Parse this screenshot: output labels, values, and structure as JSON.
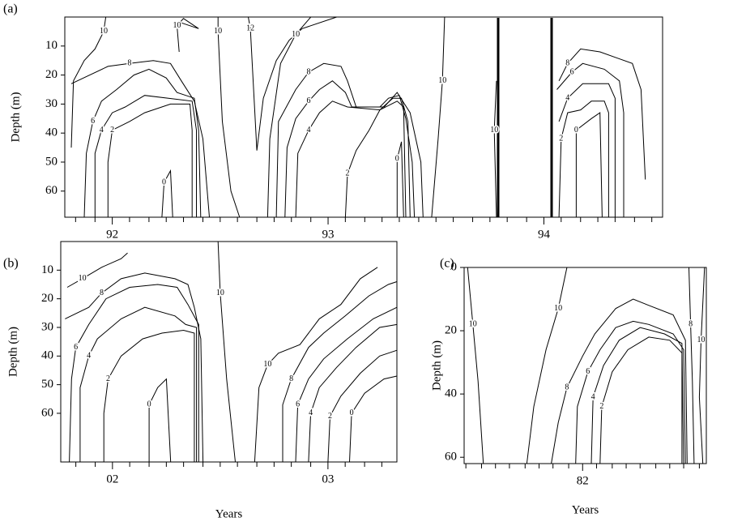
{
  "chart_data": [
    {
      "type": "contour",
      "title": "(a)",
      "ylabel": "Depth (m)",
      "line_color": "#000000",
      "xlim": [
        91.78,
        94.55
      ],
      "ylim": [
        69,
        0
      ],
      "xticks": [
        92,
        93,
        94
      ],
      "xminor": [
        91.83,
        91.92,
        92.08,
        92.17,
        92.25,
        92.33,
        92.42,
        92.5,
        92.58,
        92.67,
        92.75,
        92.83,
        92.92,
        93.08,
        93.17,
        93.25,
        93.33,
        93.42,
        93.5,
        93.58,
        93.67,
        93.75,
        93.83,
        93.92,
        94.08,
        94.17,
        94.25,
        94.33,
        94.42,
        94.5
      ],
      "yticks": [
        10,
        20,
        30,
        40,
        50,
        60
      ],
      "contours": [
        {
          "level": 10,
          "x": [
            91.97,
            91.96,
            91.92,
            91.87,
            91.82,
            91.81
          ],
          "y": [
            0,
            5,
            11,
            15,
            22,
            45
          ]
        },
        {
          "level": 8,
          "x": [
            91.81,
            91.98,
            92.08,
            92.19,
            92.27,
            92.32,
            92.38,
            92.42,
            92.45
          ],
          "y": [
            23,
            17,
            16,
            15,
            16,
            22,
            29,
            42,
            69
          ]
        },
        {
          "level": 6,
          "x": [
            91.87,
            91.88,
            91.91,
            91.95,
            92.02,
            92.1,
            92.17,
            92.25,
            92.3,
            92.38,
            92.4,
            92.41
          ],
          "y": [
            69,
            47,
            36,
            29,
            25,
            20,
            18,
            21,
            26,
            28,
            39,
            69
          ]
        },
        {
          "level": 4,
          "x": [
            91.92,
            91.92,
            91.95,
            92.0,
            92.06,
            92.15,
            92.37,
            92.39,
            92.39
          ],
          "y": [
            69,
            47,
            39,
            33,
            31,
            27,
            29,
            39,
            69
          ]
        },
        {
          "level": 2,
          "x": [
            91.98,
            91.98,
            92.0,
            92.08,
            92.15,
            92.27,
            92.36,
            92.37,
            92.37
          ],
          "y": [
            69,
            50,
            39,
            36,
            33,
            30,
            30,
            39,
            69
          ]
        },
        {
          "level": 0,
          "x": [
            92.23,
            92.24,
            92.27,
            92.28
          ],
          "y": [
            69,
            57,
            53,
            69
          ]
        },
        {
          "level": 10,
          "x": [
            92.31,
            92.3,
            92.33,
            92.4,
            92.32
          ],
          "y": [
            12,
            3,
            0.5,
            4,
            2
          ]
        },
        {
          "level": 10,
          "x": [
            92.49,
            92.49,
            92.51,
            92.55,
            92.59
          ],
          "y": [
            0,
            5,
            36,
            60,
            69
          ]
        },
        {
          "level": 12,
          "x": [
            92.63,
            92.64,
            92.67,
            92.7,
            92.76,
            92.82,
            92.88,
            93.04
          ],
          "y": [
            0,
            4,
            46,
            28,
            15,
            8,
            4,
            0
          ]
        },
        {
          "level": 10,
          "x": [
            92.92,
            92.85,
            92.78,
            92.73,
            92.72
          ],
          "y": [
            0,
            6,
            16,
            42,
            69
          ]
        },
        {
          "level": 8,
          "x": [
            92.76,
            92.77,
            92.85,
            92.91,
            92.98,
            93.06,
            93.09,
            93.13,
            93.26,
            93.32,
            93.38,
            93.43,
            93.44
          ],
          "y": [
            69,
            36,
            25,
            19,
            16,
            17,
            22,
            31,
            31,
            26,
            33,
            50,
            69
          ]
        },
        {
          "level": 6,
          "x": [
            92.8,
            92.81,
            92.85,
            92.91,
            92.96,
            93.02,
            93.08,
            93.11,
            93.24,
            93.28,
            93.33,
            93.36,
            93.39,
            93.4
          ],
          "y": [
            69,
            45,
            35,
            29,
            25,
            22,
            26,
            31,
            31,
            28,
            27,
            35,
            50,
            69
          ]
        },
        {
          "level": 4,
          "x": [
            92.85,
            92.86,
            92.91,
            92.96,
            93.02,
            93.09,
            93.24,
            93.3,
            93.34,
            93.37,
            93.38
          ],
          "y": [
            69,
            47,
            39,
            33,
            29,
            31,
            32,
            28,
            28,
            36,
            69
          ]
        },
        {
          "level": 2,
          "x": [
            93.08,
            93.09,
            93.13,
            93.19,
            93.24,
            93.32,
            93.35,
            93.36
          ],
          "y": [
            69,
            54,
            46,
            39,
            32,
            29,
            31,
            69
          ]
        },
        {
          "level": 0,
          "x": [
            93.32,
            93.32,
            93.34,
            93.35
          ],
          "y": [
            69,
            49,
            43,
            69
          ]
        },
        {
          "level": 10,
          "x": [
            93.54,
            93.53,
            93.51,
            93.48
          ],
          "y": [
            0,
            22,
            42,
            69
          ]
        },
        {
          "level": 10,
          "x": [
            93.78,
            93.77,
            93.78
          ],
          "y": [
            22,
            39,
            69
          ]
        },
        {
          "level": 8,
          "x": [
            94.07,
            94.11,
            94.17,
            94.26,
            94.41,
            94.45,
            94.47
          ],
          "y": [
            22,
            16,
            11,
            12,
            16,
            25,
            56
          ]
        },
        {
          "level": 6,
          "x": [
            94.06,
            94.13,
            94.18,
            94.28,
            94.35,
            94.37,
            94.37
          ],
          "y": [
            25,
            19,
            16,
            18,
            22,
            33,
            69
          ]
        },
        {
          "level": 4,
          "x": [
            94.07,
            94.11,
            94.18,
            94.3,
            94.33,
            94.33
          ],
          "y": [
            36,
            28,
            23,
            23,
            28,
            69
          ]
        },
        {
          "level": 2,
          "x": [
            94.07,
            94.08,
            94.11,
            94.17,
            94.22,
            94.28,
            94.3,
            94.3
          ],
          "y": [
            69,
            42,
            33,
            32,
            29,
            29,
            33,
            69
          ]
        },
        {
          "level": 0,
          "x": [
            94.15,
            94.15,
            94.22,
            94.26,
            94.27
          ],
          "y": [
            69,
            39,
            35,
            33,
            69
          ]
        }
      ]
    },
    {
      "type": "contour",
      "title": "(b)",
      "ylabel": "Depth (m)",
      "xlabel": "Years",
      "line_color": "#000000",
      "xlim": [
        1.76,
        3.32
      ],
      "ylim": [
        77,
        0
      ],
      "xticks": [
        {
          "value": 2,
          "label": "02"
        },
        {
          "value": 3,
          "label": "03"
        }
      ],
      "xminor": [
        1.83,
        1.92,
        2.08,
        2.17,
        2.25,
        2.33,
        2.42,
        2.5,
        2.58,
        2.67,
        2.75,
        2.83,
        2.92,
        3.08,
        3.17,
        3.25
      ],
      "yticks": [
        10,
        20,
        30,
        40,
        50,
        60
      ],
      "contours": [
        {
          "level": 10,
          "x": [
            1.79,
            1.86,
            1.95,
            2.04,
            2.07
          ],
          "y": [
            16,
            13,
            9,
            6,
            4
          ]
        },
        {
          "level": 8,
          "x": [
            1.78,
            1.89,
            1.95,
            2.04,
            2.15,
            2.29,
            2.35,
            2.38,
            2.41,
            2.42
          ],
          "y": [
            27,
            23,
            18,
            13,
            11,
            13,
            15,
            23,
            34,
            77
          ]
        },
        {
          "level": 6,
          "x": [
            1.8,
            1.81,
            1.83,
            1.89,
            1.97,
            2.08,
            2.21,
            2.3,
            2.35,
            2.4,
            2.4
          ],
          "y": [
            77,
            48,
            37,
            29,
            20,
            16,
            15,
            16,
            22,
            29,
            77
          ]
        },
        {
          "level": 4,
          "x": [
            1.85,
            1.85,
            1.89,
            1.93,
            2.04,
            2.15,
            2.29,
            2.34,
            2.39,
            2.39
          ],
          "y": [
            77,
            51,
            40,
            34,
            27,
            23,
            26,
            29,
            30,
            77
          ]
        },
        {
          "level": 2,
          "x": [
            1.96,
            1.96,
            1.98,
            2.04,
            2.14,
            2.23,
            2.33,
            2.38,
            2.38
          ],
          "y": [
            77,
            60,
            48,
            40,
            34,
            32,
            31,
            32,
            77
          ]
        },
        {
          "level": 0,
          "x": [
            2.17,
            2.17,
            2.21,
            2.25,
            2.27
          ],
          "y": [
            77,
            57,
            51,
            48,
            77
          ]
        },
        {
          "level": 10,
          "x": [
            2.49,
            2.5,
            2.53,
            2.57
          ],
          "y": [
            0,
            18,
            48,
            77
          ]
        },
        {
          "level": 10,
          "x": [
            2.66,
            2.68,
            2.72,
            2.77,
            2.87,
            2.96,
            3.06,
            3.15,
            3.23
          ],
          "y": [
            77,
            51,
            43,
            39,
            36,
            27,
            22,
            13,
            9
          ]
        },
        {
          "level": 8,
          "x": [
            2.79,
            2.79,
            2.83,
            2.91,
            2.98,
            3.08,
            3.19,
            3.28,
            3.32
          ],
          "y": [
            77,
            57,
            48,
            37,
            32,
            26,
            19,
            15,
            14
          ]
        },
        {
          "level": 6,
          "x": [
            2.85,
            2.86,
            2.91,
            2.98,
            3.09,
            3.21,
            3.32
          ],
          "y": [
            77,
            57,
            48,
            41,
            34,
            27,
            23
          ]
        },
        {
          "level": 4,
          "x": [
            2.91,
            2.92,
            2.96,
            3.04,
            3.13,
            3.24,
            3.32
          ],
          "y": [
            77,
            60,
            51,
            44,
            37,
            30,
            29
          ]
        },
        {
          "level": 2,
          "x": [
            3.0,
            3.01,
            3.06,
            3.15,
            3.24,
            3.32
          ],
          "y": [
            77,
            61,
            54,
            46,
            40,
            38
          ]
        },
        {
          "level": 0,
          "x": [
            3.1,
            3.11,
            3.17,
            3.26,
            3.32
          ],
          "y": [
            77,
            60,
            53,
            48,
            47
          ]
        }
      ]
    },
    {
      "type": "contour",
      "title": "(c)",
      "ylabel": "Depth (m)",
      "xlabel": "Years",
      "line_color": "#000000",
      "xlim": [
        81.32,
        82.71
      ],
      "ylim": [
        62,
        0
      ],
      "xticks": [
        82
      ],
      "xminor": [
        81.33,
        81.42,
        81.5,
        81.58,
        81.67,
        81.75,
        81.83,
        81.92,
        82.08,
        82.17,
        82.25,
        82.33,
        82.42,
        82.5,
        82.58,
        82.67
      ],
      "yticks": [
        0,
        20,
        40,
        60
      ],
      "contours": [
        {
          "level": 10,
          "x": [
            81.34,
            81.37,
            81.4,
            81.43
          ],
          "y": [
            0,
            18,
            36,
            62
          ]
        },
        {
          "level": 10,
          "x": [
            81.91,
            81.86,
            81.79,
            81.72,
            81.68
          ],
          "y": [
            0,
            13,
            26,
            44,
            62
          ]
        },
        {
          "level": 8,
          "x": [
            81.82,
            81.86,
            81.91,
            82.0,
            82.07,
            82.19,
            82.29,
            82.38,
            82.52,
            82.59,
            82.6
          ],
          "y": [
            62,
            49,
            38,
            28,
            21,
            13,
            10,
            12,
            15,
            23,
            62
          ]
        },
        {
          "level": 6,
          "x": [
            81.96,
            81.97,
            82.03,
            82.1,
            82.19,
            82.29,
            82.38,
            82.52,
            82.58,
            82.59
          ],
          "y": [
            62,
            44,
            33,
            26,
            19,
            17,
            18,
            21,
            26,
            62
          ]
        },
        {
          "level": 4,
          "x": [
            82.05,
            82.06,
            82.12,
            82.21,
            82.33,
            82.47,
            82.57,
            82.58
          ],
          "y": [
            62,
            41,
            31,
            23,
            19,
            21,
            24,
            62
          ]
        },
        {
          "level": 2,
          "x": [
            82.1,
            82.11,
            82.17,
            82.26,
            82.38,
            82.5,
            82.57,
            82.57
          ],
          "y": [
            62,
            44,
            33,
            26,
            22,
            23,
            27,
            62
          ]
        },
        {
          "level": 8,
          "x": [
            82.61,
            82.62,
            82.63,
            82.64
          ],
          "y": [
            0,
            18,
            36,
            62
          ]
        },
        {
          "level": 10,
          "x": [
            82.7,
            82.68,
            82.67,
            82.69
          ],
          "y": [
            0,
            23,
            41,
            62
          ]
        }
      ]
    }
  ]
}
